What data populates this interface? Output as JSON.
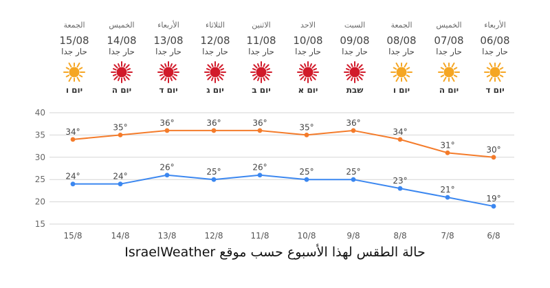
{
  "forecast": [
    {
      "weekday": "الجمعة",
      "date": "15/08",
      "condition": "حار جدا",
      "hebrew": "יום ו",
      "icon": "sun-icon"
    },
    {
      "weekday": "الخميس",
      "date": "14/08",
      "condition": "حار جدا",
      "hebrew": "יום ה",
      "icon": "hot-sun-icon"
    },
    {
      "weekday": "الأربعاء",
      "date": "13/08",
      "condition": "حار جدا",
      "hebrew": "יום ד",
      "icon": "hot-sun-icon"
    },
    {
      "weekday": "الثلاثاء",
      "date": "12/08",
      "condition": "حار جدا",
      "hebrew": "יום ג",
      "icon": "hot-sun-icon"
    },
    {
      "weekday": "الاثنين",
      "date": "11/08",
      "condition": "حار جدا",
      "hebrew": "יום ב",
      "icon": "hot-sun-icon"
    },
    {
      "weekday": "الاحد",
      "date": "10/08",
      "condition": "حار جدا",
      "hebrew": "יום א",
      "icon": "hot-sun-icon"
    },
    {
      "weekday": "السبت",
      "date": "09/08",
      "condition": "حار جدا",
      "hebrew": "שבת",
      "icon": "hot-sun-icon"
    },
    {
      "weekday": "الجمعة",
      "date": "08/08",
      "condition": "حار جدا",
      "hebrew": "יום ו",
      "icon": "sun-icon"
    },
    {
      "weekday": "الخميس",
      "date": "07/08",
      "condition": "حار جدا",
      "hebrew": "יום ה",
      "icon": "sun-icon"
    },
    {
      "weekday": "الأربعاء",
      "date": "06/08",
      "condition": "حار جدا",
      "hebrew": "יום ד",
      "icon": "sun-icon"
    }
  ],
  "colors": {
    "high": "#f47b2a",
    "low": "#3b87f0",
    "sun": "#f5a623",
    "hot_sun": "#d11a2a",
    "grid": "#d6d6d6"
  },
  "chart_data": {
    "type": "line",
    "categories": [
      "15/8",
      "14/8",
      "13/8",
      "12/8",
      "11/8",
      "10/8",
      "9/8",
      "8/8",
      "7/8",
      "6/8"
    ],
    "series": [
      {
        "values": [
          34,
          35,
          36,
          36,
          36,
          35,
          36,
          34,
          31,
          30
        ],
        "color": "#f47b2a"
      },
      {
        "values": [
          24,
          24,
          26,
          25,
          26,
          25,
          25,
          23,
          21,
          19
        ],
        "color": "#3b87f0"
      }
    ],
    "value_suffix": "°",
    "ylim": [
      15,
      40
    ],
    "yticks": [
      15,
      20,
      25,
      30,
      35,
      40
    ],
    "grid": true,
    "legend": "none"
  },
  "caption": "حالة الطقس لهذا الأسبوع حسب موقع IsraelWeather"
}
